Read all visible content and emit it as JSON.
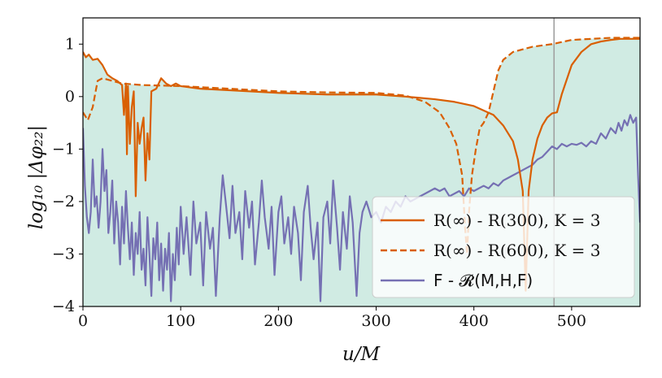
{
  "chart_data": {
    "type": "line",
    "xlabel": "u/M",
    "ylabel": "log₁₀ |Δφ₂₂|",
    "xlim": [
      0,
      570
    ],
    "ylim": [
      -4,
      1.5
    ],
    "xticks": [
      0,
      100,
      200,
      300,
      400,
      500
    ],
    "yticks": [
      -4,
      -3,
      -2,
      -1,
      0,
      1
    ],
    "x_tick_labels": [
      "0",
      "100",
      "200",
      "300",
      "400",
      "500"
    ],
    "y_tick_labels": [
      "−4",
      "−3",
      "−2",
      "−1",
      "0",
      "1"
    ],
    "vline_x": 482,
    "shade_color": "#d0ebe3",
    "legend_position": "lower-right",
    "series": [
      {
        "name": "R(∞) - R(300), K = 3",
        "color": "#d95f02",
        "style": "solid",
        "points": [
          [
            0,
            0.85
          ],
          [
            3,
            0.75
          ],
          [
            6,
            0.8
          ],
          [
            10,
            0.7
          ],
          [
            15,
            0.72
          ],
          [
            20,
            0.6
          ],
          [
            25,
            0.42
          ],
          [
            30,
            0.35
          ],
          [
            35,
            0.3
          ],
          [
            40,
            0.22
          ],
          [
            42,
            -0.35
          ],
          [
            44,
            0.25
          ],
          [
            45,
            -1.1
          ],
          [
            46,
            0.2
          ],
          [
            48,
            -0.9
          ],
          [
            50,
            -0.2
          ],
          [
            52,
            0.1
          ],
          [
            54,
            -1.9
          ],
          [
            56,
            -0.5
          ],
          [
            58,
            -0.9
          ],
          [
            60,
            -0.6
          ],
          [
            62,
            -0.4
          ],
          [
            64,
            -1.6
          ],
          [
            66,
            -0.7
          ],
          [
            68,
            -1.2
          ],
          [
            70,
            0.1
          ],
          [
            75,
            0.15
          ],
          [
            80,
            0.35
          ],
          [
            85,
            0.25
          ],
          [
            90,
            0.2
          ],
          [
            95,
            0.25
          ],
          [
            100,
            0.2
          ],
          [
            120,
            0.15
          ],
          [
            150,
            0.12
          ],
          [
            200,
            0.07
          ],
          [
            250,
            0.04
          ],
          [
            300,
            0.04
          ],
          [
            330,
            0.0
          ],
          [
            360,
            -0.05
          ],
          [
            380,
            -0.1
          ],
          [
            400,
            -0.18
          ],
          [
            420,
            -0.35
          ],
          [
            430,
            -0.55
          ],
          [
            440,
            -0.85
          ],
          [
            445,
            -1.2
          ],
          [
            450,
            -1.8
          ],
          [
            453,
            -3.7
          ],
          [
            456,
            -1.8
          ],
          [
            460,
            -1.2
          ],
          [
            465,
            -0.8
          ],
          [
            470,
            -0.55
          ],
          [
            475,
            -0.4
          ],
          [
            480,
            -0.32
          ],
          [
            485,
            -0.3
          ],
          [
            490,
            0.05
          ],
          [
            500,
            0.6
          ],
          [
            510,
            0.85
          ],
          [
            520,
            1.0
          ],
          [
            530,
            1.05
          ],
          [
            540,
            1.08
          ],
          [
            550,
            1.1
          ],
          [
            570,
            1.1
          ]
        ]
      },
      {
        "name": "R(∞) - R(600), K = 3",
        "color": "#d95f02",
        "style": "dashed",
        "points": [
          [
            0,
            -0.3
          ],
          [
            5,
            -0.45
          ],
          [
            10,
            -0.2
          ],
          [
            15,
            0.3
          ],
          [
            20,
            0.35
          ],
          [
            30,
            0.3
          ],
          [
            40,
            0.25
          ],
          [
            60,
            0.22
          ],
          [
            100,
            0.2
          ],
          [
            150,
            0.15
          ],
          [
            200,
            0.1
          ],
          [
            250,
            0.08
          ],
          [
            300,
            0.07
          ],
          [
            330,
            0.02
          ],
          [
            350,
            -0.1
          ],
          [
            365,
            -0.3
          ],
          [
            375,
            -0.6
          ],
          [
            382,
            -0.9
          ],
          [
            388,
            -1.5
          ],
          [
            391,
            -2.5
          ],
          [
            393,
            -3.0
          ],
          [
            395,
            -2.2
          ],
          [
            398,
            -1.5
          ],
          [
            402,
            -1.0
          ],
          [
            406,
            -0.6
          ],
          [
            410,
            -0.5
          ],
          [
            415,
            -0.3
          ],
          [
            420,
            0.1
          ],
          [
            425,
            0.5
          ],
          [
            430,
            0.7
          ],
          [
            440,
            0.85
          ],
          [
            460,
            0.95
          ],
          [
            480,
            1.0
          ],
          [
            500,
            1.08
          ],
          [
            520,
            1.1
          ],
          [
            540,
            1.12
          ],
          [
            570,
            1.12
          ]
        ]
      },
      {
        "name": "F - 𝓡(M,H,F)",
        "color": "#7570b3",
        "style": "solid",
        "points": [
          [
            0,
            -0.6
          ],
          [
            2,
            -1.7
          ],
          [
            4,
            -2.3
          ],
          [
            6,
            -2.6
          ],
          [
            8,
            -2.2
          ],
          [
            10,
            -1.2
          ],
          [
            12,
            -2.1
          ],
          [
            14,
            -1.9
          ],
          [
            16,
            -2.5
          ],
          [
            18,
            -2.0
          ],
          [
            20,
            -1.0
          ],
          [
            22,
            -1.8
          ],
          [
            24,
            -1.4
          ],
          [
            26,
            -2.6
          ],
          [
            28,
            -2.2
          ],
          [
            30,
            -1.6
          ],
          [
            32,
            -2.8
          ],
          [
            34,
            -2.0
          ],
          [
            36,
            -2.4
          ],
          [
            38,
            -3.2
          ],
          [
            40,
            -2.1
          ],
          [
            42,
            -2.8
          ],
          [
            44,
            -1.8
          ],
          [
            46,
            -2.5
          ],
          [
            48,
            -3.1
          ],
          [
            50,
            -2.4
          ],
          [
            52,
            -3.4
          ],
          [
            54,
            -2.6
          ],
          [
            56,
            -3.0
          ],
          [
            58,
            -2.2
          ],
          [
            60,
            -3.3
          ],
          [
            62,
            -2.9
          ],
          [
            64,
            -3.6
          ],
          [
            66,
            -2.3
          ],
          [
            68,
            -3.0
          ],
          [
            70,
            -3.8
          ],
          [
            72,
            -2.7
          ],
          [
            74,
            -3.1
          ],
          [
            76,
            -2.4
          ],
          [
            78,
            -3.5
          ],
          [
            80,
            -2.8
          ],
          [
            82,
            -3.7
          ],
          [
            84,
            -2.9
          ],
          [
            86,
            -3.3
          ],
          [
            88,
            -2.6
          ],
          [
            90,
            -3.9
          ],
          [
            92,
            -3.0
          ],
          [
            94,
            -3.5
          ],
          [
            96,
            -2.5
          ],
          [
            98,
            -3.2
          ],
          [
            100,
            -2.1
          ],
          [
            103,
            -3.0
          ],
          [
            106,
            -2.3
          ],
          [
            110,
            -3.4
          ],
          [
            113,
            -2.0
          ],
          [
            116,
            -2.8
          ],
          [
            120,
            -2.4
          ],
          [
            123,
            -3.6
          ],
          [
            126,
            -2.2
          ],
          [
            130,
            -2.9
          ],
          [
            133,
            -2.5
          ],
          [
            136,
            -3.8
          ],
          [
            140,
            -2.3
          ],
          [
            143,
            -1.5
          ],
          [
            146,
            -2.0
          ],
          [
            150,
            -2.7
          ],
          [
            153,
            -1.7
          ],
          [
            156,
            -2.6
          ],
          [
            160,
            -2.2
          ],
          [
            163,
            -3.1
          ],
          [
            166,
            -1.8
          ],
          [
            170,
            -2.5
          ],
          [
            173,
            -2.0
          ],
          [
            176,
            -3.2
          ],
          [
            180,
            -2.4
          ],
          [
            183,
            -1.6
          ],
          [
            186,
            -2.3
          ],
          [
            190,
            -2.9
          ],
          [
            193,
            -2.1
          ],
          [
            196,
            -3.4
          ],
          [
            200,
            -2.2
          ],
          [
            203,
            -1.9
          ],
          [
            206,
            -2.8
          ],
          [
            210,
            -2.3
          ],
          [
            213,
            -3.0
          ],
          [
            216,
            -2.1
          ],
          [
            220,
            -2.6
          ],
          [
            223,
            -3.5
          ],
          [
            226,
            -2.2
          ],
          [
            230,
            -1.7
          ],
          [
            233,
            -2.5
          ],
          [
            236,
            -3.1
          ],
          [
            240,
            -2.4
          ],
          [
            243,
            -3.9
          ],
          [
            246,
            -2.3
          ],
          [
            250,
            -2.0
          ],
          [
            253,
            -2.8
          ],
          [
            256,
            -1.6
          ],
          [
            260,
            -2.5
          ],
          [
            263,
            -3.3
          ],
          [
            266,
            -2.2
          ],
          [
            270,
            -2.9
          ],
          [
            273,
            -1.9
          ],
          [
            276,
            -2.4
          ],
          [
            280,
            -3.8
          ],
          [
            283,
            -2.6
          ],
          [
            286,
            -2.2
          ],
          [
            290,
            -2.0
          ],
          [
            295,
            -2.3
          ],
          [
            300,
            -2.2
          ],
          [
            305,
            -2.4
          ],
          [
            310,
            -2.1
          ],
          [
            315,
            -2.2
          ],
          [
            320,
            -2.0
          ],
          [
            325,
            -2.1
          ],
          [
            330,
            -1.9
          ],
          [
            335,
            -2.0
          ],
          [
            340,
            -1.95
          ],
          [
            345,
            -1.9
          ],
          [
            350,
            -1.85
          ],
          [
            355,
            -1.8
          ],
          [
            360,
            -1.75
          ],
          [
            365,
            -1.8
          ],
          [
            370,
            -1.75
          ],
          [
            375,
            -1.9
          ],
          [
            380,
            -1.85
          ],
          [
            385,
            -1.8
          ],
          [
            390,
            -1.9
          ],
          [
            395,
            -1.75
          ],
          [
            400,
            -1.8
          ],
          [
            405,
            -1.75
          ],
          [
            410,
            -1.7
          ],
          [
            415,
            -1.75
          ],
          [
            420,
            -1.65
          ],
          [
            425,
            -1.7
          ],
          [
            430,
            -1.6
          ],
          [
            435,
            -1.55
          ],
          [
            440,
            -1.5
          ],
          [
            445,
            -1.45
          ],
          [
            450,
            -1.4
          ],
          [
            455,
            -1.35
          ],
          [
            460,
            -1.3
          ],
          [
            465,
            -1.2
          ],
          [
            470,
            -1.15
          ],
          [
            475,
            -1.05
          ],
          [
            480,
            -0.95
          ],
          [
            485,
            -1.0
          ],
          [
            490,
            -0.9
          ],
          [
            495,
            -0.95
          ],
          [
            500,
            -0.9
          ],
          [
            505,
            -0.92
          ],
          [
            510,
            -0.88
          ],
          [
            515,
            -0.95
          ],
          [
            520,
            -0.85
          ],
          [
            525,
            -0.9
          ],
          [
            530,
            -0.7
          ],
          [
            535,
            -0.8
          ],
          [
            540,
            -0.6
          ],
          [
            545,
            -0.7
          ],
          [
            548,
            -0.5
          ],
          [
            551,
            -0.65
          ],
          [
            554,
            -0.45
          ],
          [
            557,
            -0.55
          ],
          [
            560,
            -0.35
          ],
          [
            563,
            -0.5
          ],
          [
            566,
            -0.4
          ],
          [
            568,
            -1.5
          ],
          [
            570,
            -2.4
          ]
        ]
      }
    ]
  }
}
